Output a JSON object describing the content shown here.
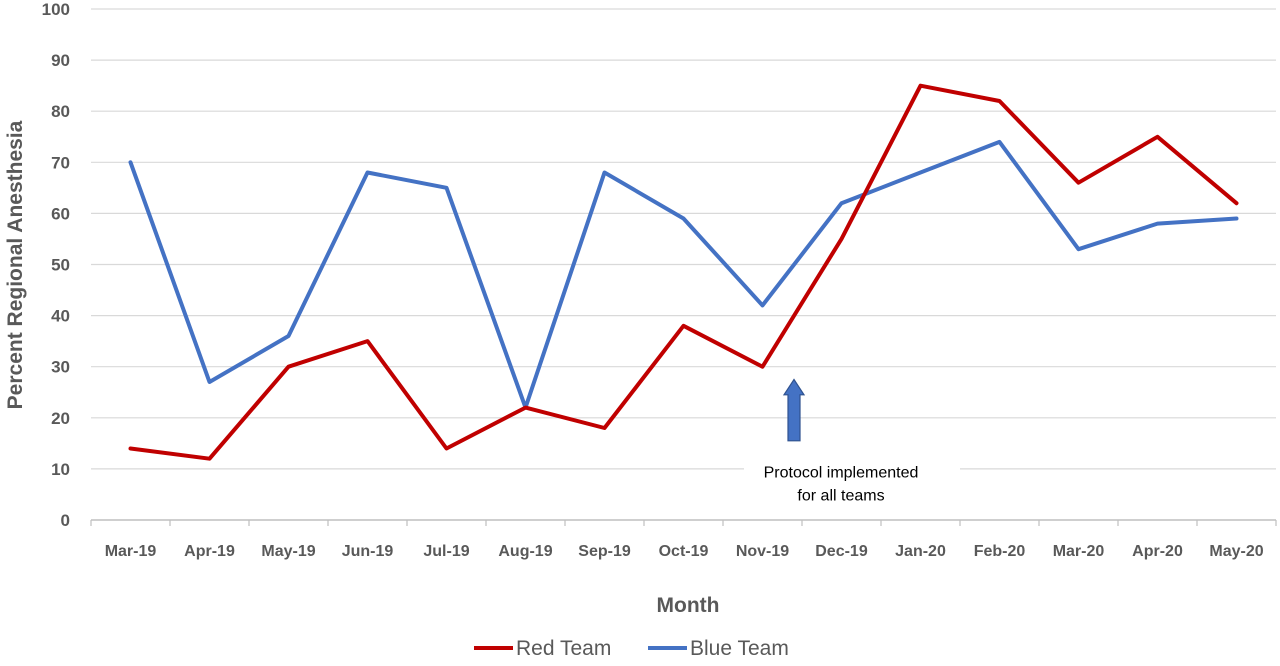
{
  "chart_data": {
    "type": "line",
    "title": "",
    "xlabel": "Month",
    "ylabel": "Percent Regional Anesthesia",
    "ylim": [
      0,
      100
    ],
    "yticks": [
      0,
      10,
      20,
      30,
      40,
      50,
      60,
      70,
      80,
      90,
      100
    ],
    "grid": true,
    "legend_position": "bottom",
    "categories": [
      "Mar-19",
      "Apr-19",
      "May-19",
      "Jun-19",
      "Jul-19",
      "Aug-19",
      "Sep-19",
      "Oct-19",
      "Nov-19",
      "Dec-19",
      "Jan-20",
      "Feb-20",
      "Mar-20",
      "Apr-20",
      "May-20"
    ],
    "series": [
      {
        "name": "Red Team",
        "color": "#C00000",
        "values": [
          14,
          12,
          30,
          35,
          14,
          22,
          18,
          38,
          30,
          55,
          85,
          82,
          66,
          75,
          62
        ]
      },
      {
        "name": "Blue Team",
        "color": "#4472C4",
        "values": [
          70,
          27,
          36,
          68,
          65,
          22,
          68,
          59,
          42,
          62,
          68,
          74,
          53,
          58,
          59
        ]
      }
    ],
    "annotation": {
      "text_line1": "Protocol implemented",
      "text_line2": "for all teams",
      "arrow_color": "#4472C4",
      "at_category_between": [
        "Nov-19",
        "Dec-19"
      ]
    }
  }
}
